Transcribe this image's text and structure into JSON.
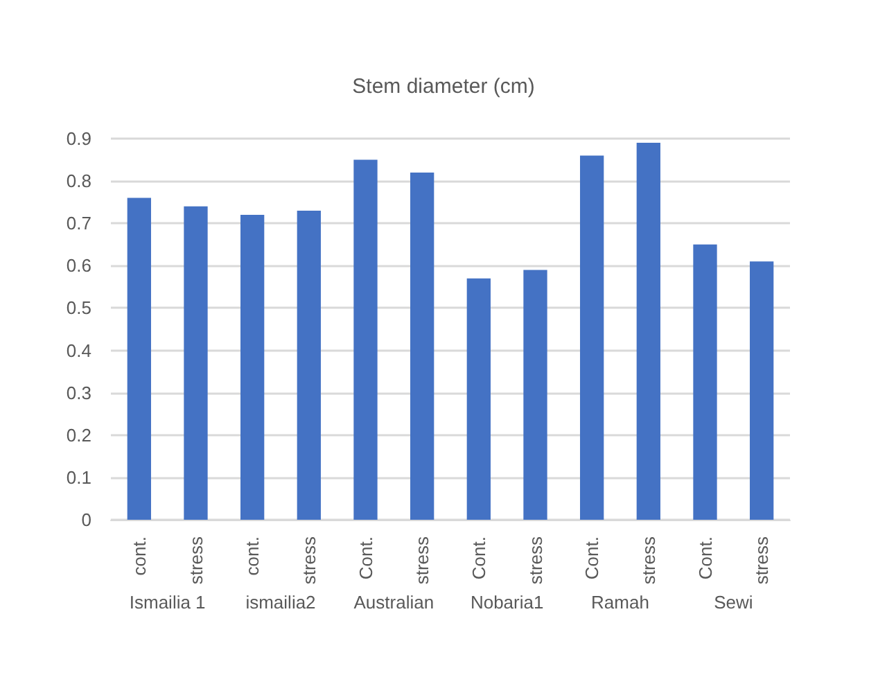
{
  "chart_data": {
    "type": "bar",
    "title": "Stem diameter (cm)",
    "categories": [
      "cont.",
      "stress",
      "cont.",
      "stress",
      "Cont.",
      "stress",
      "Cont.",
      "stress",
      "Cont.",
      "stress",
      "Cont.",
      "stress"
    ],
    "values": [
      0.76,
      0.74,
      0.72,
      0.73,
      0.85,
      0.82,
      0.57,
      0.59,
      0.86,
      0.89,
      0.65,
      0.61
    ],
    "color": "#4472c4",
    "ylim": [
      0,
      0.9
    ],
    "yticks": [
      0,
      0.1,
      0.2,
      0.3,
      0.4,
      0.5,
      0.6,
      0.7,
      0.8,
      0.9
    ],
    "grid": "y",
    "annotations": [
      "Ismailia 1",
      "ismailia2",
      "Australian",
      "Nobaria1",
      "Ramah",
      "Sewi"
    ]
  }
}
